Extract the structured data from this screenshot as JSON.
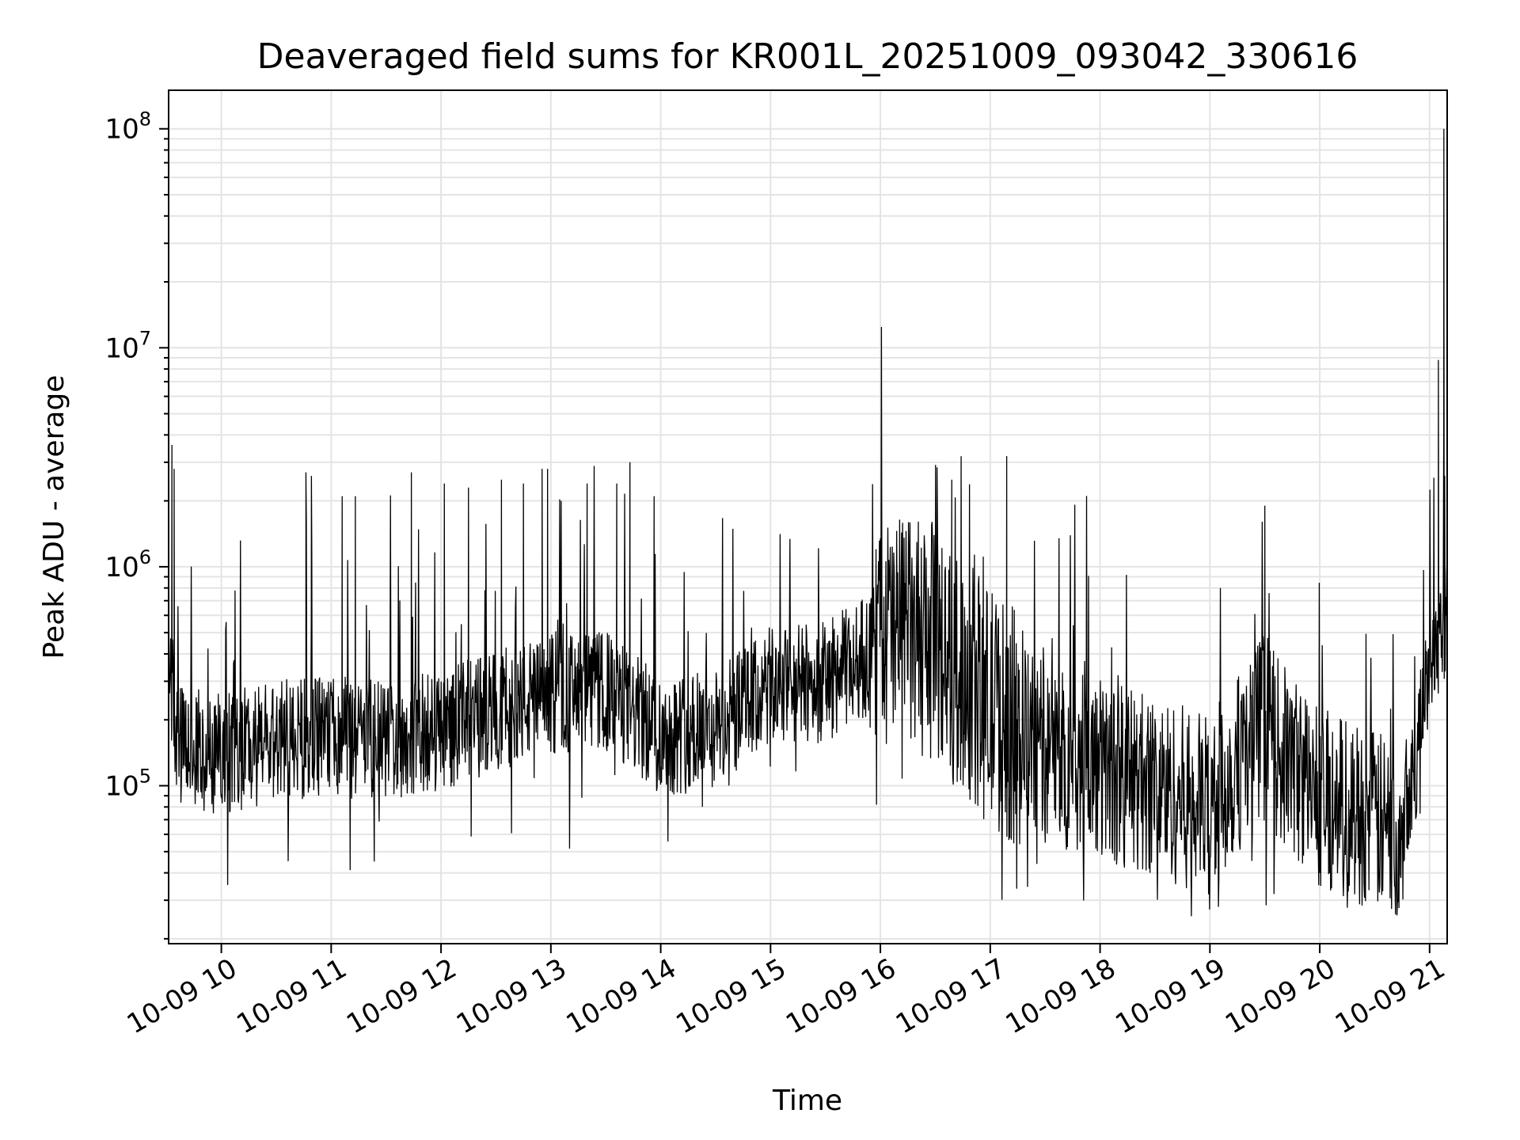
{
  "chart_data": {
    "type": "line",
    "title": "Deaveraged field sums for KR001L_20251009_093042_330616",
    "xlabel": "Time",
    "ylabel": "Peak ADU - average",
    "yscale": "log",
    "ylim": [
      19000,
      150000000
    ],
    "xlim_hours": [
      9.52,
      21.16
    ],
    "grid": true,
    "line_color": "#000000",
    "x_ticks": [
      {
        "hour": 10,
        "label": "10-09 10"
      },
      {
        "hour": 11,
        "label": "10-09 11"
      },
      {
        "hour": 12,
        "label": "10-09 12"
      },
      {
        "hour": 13,
        "label": "10-09 13"
      },
      {
        "hour": 14,
        "label": "10-09 14"
      },
      {
        "hour": 15,
        "label": "10-09 15"
      },
      {
        "hour": 16,
        "label": "10-09 16"
      },
      {
        "hour": 17,
        "label": "10-09 17"
      },
      {
        "hour": 18,
        "label": "10-09 18"
      },
      {
        "hour": 19,
        "label": "10-09 19"
      },
      {
        "hour": 20,
        "label": "10-09 20"
      },
      {
        "hour": 21,
        "label": "10-09 21"
      }
    ],
    "y_ticks": [
      {
        "value": 100000,
        "base": "10",
        "exp": "5"
      },
      {
        "value": 1000000,
        "base": "10",
        "exp": "6"
      },
      {
        "value": 10000000,
        "base": "10",
        "exp": "7"
      },
      {
        "value": 100000000,
        "base": "10",
        "exp": "8"
      }
    ],
    "series": [
      {
        "name": "field sums",
        "baseline_hours": [
          9.52,
          9.6,
          10.0,
          10.5,
          11.0,
          11.5,
          12.0,
          12.5,
          13.0,
          13.5,
          14.0,
          14.5,
          15.0,
          15.5,
          15.9,
          16.0,
          16.5,
          17.0,
          17.5,
          18.0,
          18.5,
          19.0,
          19.5,
          19.6,
          20.0,
          20.5,
          20.7,
          20.9,
          21.0,
          21.16
        ],
        "baseline_values": [
          400000,
          150000,
          140000,
          160000,
          170000,
          160000,
          180000,
          220000,
          260000,
          270000,
          170000,
          180000,
          280000,
          300000,
          400000,
          500000,
          450000,
          230000,
          140000,
          120000,
          100000,
          80000,
          200000,
          150000,
          90000,
          70000,
          60000,
          150000,
          400000,
          600000
        ],
        "spikes": [
          {
            "hour": 9.55,
            "value": 3600000
          },
          {
            "hour": 9.57,
            "value": 2800000
          },
          {
            "hour": 10.77,
            "value": 2700000
          },
          {
            "hour": 10.82,
            "value": 2600000
          },
          {
            "hour": 11.1,
            "value": 2100000
          },
          {
            "hour": 11.22,
            "value": 2100000
          },
          {
            "hour": 11.73,
            "value": 2700000
          },
          {
            "hour": 12.03,
            "value": 2400000
          },
          {
            "hour": 12.25,
            "value": 2300000
          },
          {
            "hour": 12.55,
            "value": 2500000
          },
          {
            "hour": 12.75,
            "value": 2400000
          },
          {
            "hour": 12.92,
            "value": 2800000
          },
          {
            "hour": 12.97,
            "value": 2800000
          },
          {
            "hour": 13.33,
            "value": 2400000
          },
          {
            "hour": 13.6,
            "value": 2400000
          },
          {
            "hour": 13.72,
            "value": 3000000
          },
          {
            "hour": 13.94,
            "value": 2100000
          },
          {
            "hour": 16.65,
            "value": 2500000
          },
          {
            "hour": 17.15,
            "value": 3200000
          },
          {
            "hour": 19.5,
            "value": 1900000
          },
          {
            "hour": 21.08,
            "value": 8800000
          },
          {
            "hour": 21.13,
            "value": 100000000
          }
        ]
      }
    ]
  }
}
